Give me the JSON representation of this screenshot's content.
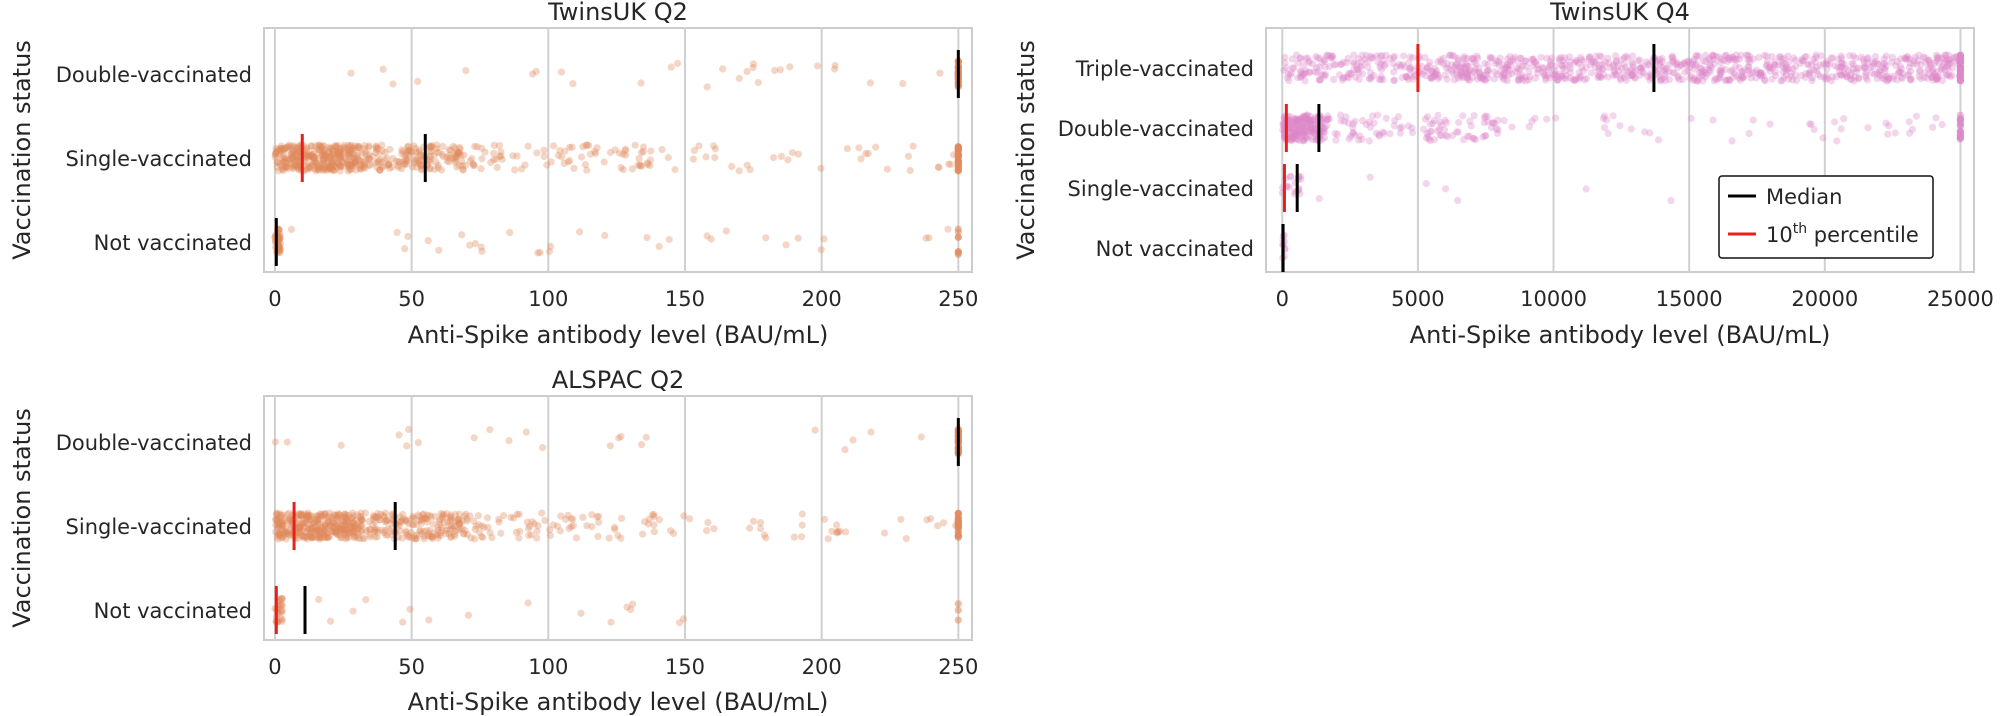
{
  "legend": {
    "median_label": "Median",
    "pct_base": "10",
    "pct_sup": "th",
    "pct_rest": " percentile",
    "median_color": "#000000",
    "pct_color": "#e8201c"
  },
  "colors": {
    "orange": "#e08a5c",
    "pink": "#dd88c9",
    "frame": "#cccccc",
    "grid": "#d0d0d0"
  },
  "chart_data": [
    {
      "type": "scatter",
      "title": "TwinsUK Q2",
      "xlabel": "Anti-Spike antibody level (BAU/mL)",
      "ylabel": "Vaccination status",
      "xlim": [
        -4,
        255
      ],
      "xticks": [
        0,
        50,
        100,
        150,
        200,
        250
      ],
      "grid": "vertical",
      "color": "orange",
      "categories": [
        "Double-vaccinated",
        "Single-vaccinated",
        "Not vaccinated"
      ],
      "median": [
        250,
        55,
        0.5
      ],
      "p10": [
        null,
        10,
        null
      ],
      "dist": [
        {
          "cap": 250,
          "bands": [
            [
              0,
              250,
              28
            ]
          ],
          "capN": 40
        },
        {
          "cap": 250,
          "bands": [
            [
              0,
              30,
              320
            ],
            [
              30,
              70,
              180
            ],
            [
              70,
              140,
              80
            ],
            [
              140,
              250,
              35
            ]
          ],
          "capN": 40
        },
        {
          "cap": 250,
          "bands": [
            [
              0,
              2,
              45
            ],
            [
              5,
              250,
              32
            ]
          ],
          "capN": 8
        }
      ]
    },
    {
      "type": "scatter",
      "title": "TwinsUK Q4",
      "xlabel": "Anti-Spike antibody level (BAU/mL)",
      "ylabel": "Vaccination status",
      "xlim": [
        -600,
        25500
      ],
      "xticks": [
        0,
        5000,
        10000,
        15000,
        20000,
        25000
      ],
      "grid": "vertical",
      "color": "pink",
      "categories": [
        "Triple-vaccinated",
        "Double-vaccinated",
        "Single-vaccinated",
        "Not vaccinated"
      ],
      "median": [
        13700,
        1350,
        550,
        30
      ],
      "p10": [
        5000,
        150,
        80,
        20
      ],
      "dist": [
        {
          "cap": 25000,
          "bands": [
            [
              0,
              5000,
              150
            ],
            [
              5000,
              25000,
              800
            ]
          ],
          "capN": 40
        },
        {
          "cap": 25000,
          "bands": [
            [
              0,
              1500,
              200
            ],
            [
              1500,
              8000,
              110
            ],
            [
              8000,
              25000,
              45
            ]
          ],
          "capN": 20
        },
        {
          "cap": 25000,
          "bands": [
            [
              0,
              700,
              20
            ],
            [
              700,
              15000,
              7
            ]
          ],
          "capN": 0
        },
        {
          "cap": 25000,
          "bands": [
            [
              0,
              100,
              10
            ]
          ],
          "capN": 0
        }
      ]
    },
    {
      "type": "scatter",
      "title": "ALSPAC Q2",
      "xlabel": "Anti-Spike antibody level (BAU/mL)",
      "ylabel": "Vaccination status",
      "xlim": [
        -4,
        255
      ],
      "xticks": [
        0,
        50,
        100,
        150,
        200,
        250
      ],
      "grid": "vertical",
      "color": "orange",
      "categories": [
        "Double-vaccinated",
        "Single-vaccinated",
        "Not vaccinated"
      ],
      "median": [
        250,
        44,
        11
      ],
      "p10": [
        null,
        7,
        0.5
      ],
      "dist": [
        {
          "cap": 250,
          "bands": [
            [
              0,
              250,
              22
            ]
          ],
          "capN": 40
        },
        {
          "cap": 250,
          "bands": [
            [
              0,
              30,
              330
            ],
            [
              30,
              70,
              200
            ],
            [
              70,
              140,
              80
            ],
            [
              140,
              250,
              35
            ]
          ],
          "capN": 30
        },
        {
          "cap": 250,
          "bands": [
            [
              0,
              3,
              30
            ],
            [
              3,
              160,
              16
            ]
          ],
          "capN": 3
        }
      ]
    }
  ]
}
